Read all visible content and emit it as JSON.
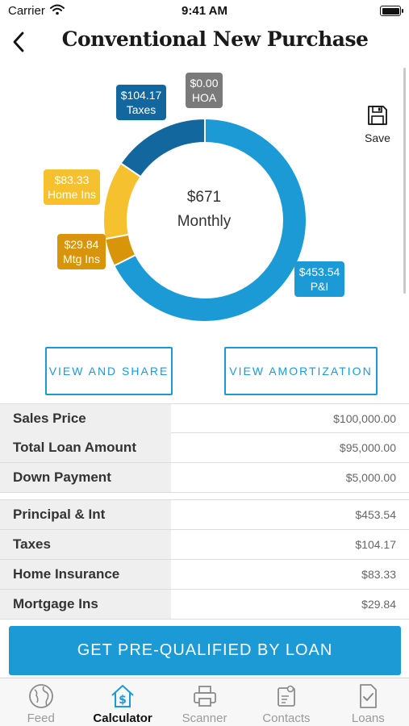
{
  "status_bar": {
    "carrier": "Carrier",
    "time": "9:41 AM"
  },
  "header": {
    "title": "Conventional New Purchase"
  },
  "save": {
    "label": "Save"
  },
  "chart_data": {
    "type": "pie",
    "center_value": "$671",
    "center_caption": "Monthly",
    "series": [
      {
        "name": "P&I",
        "value": 453.54,
        "display": "$453.54",
        "color": "#1b9ad6"
      },
      {
        "name": "Mtg Ins",
        "value": 29.84,
        "display": "$29.84",
        "color": "#d9950a"
      },
      {
        "name": "Home Ins",
        "value": 83.33,
        "display": "$83.33",
        "color": "#f6c12e"
      },
      {
        "name": "Taxes",
        "value": 104.17,
        "display": "$104.17",
        "color": "#12679e"
      },
      {
        "name": "HOA",
        "value": 0.0,
        "display": "$0.00",
        "color": "#7a7a7a"
      }
    ]
  },
  "actions": {
    "view_share": "VIEW AND SHARE",
    "view_amortization": "VIEW AMORTIZATION"
  },
  "loan_summary": [
    {
      "label": "Sales Price",
      "value": "$100,000.00"
    },
    {
      "label": "Total Loan Amount",
      "value": "$95,000.00"
    },
    {
      "label": "Down Payment",
      "value": "$5,000.00"
    }
  ],
  "payment_breakdown": [
    {
      "label": "Principal & Int",
      "value": "$453.54"
    },
    {
      "label": "Taxes",
      "value": "$104.17"
    },
    {
      "label": "Home Insurance",
      "value": "$83.33"
    },
    {
      "label": "Mortgage Ins",
      "value": "$29.84"
    }
  ],
  "cta": {
    "label": "GET PRE-QUALIFIED BY LOAN"
  },
  "tabs": [
    {
      "label": "Feed",
      "icon": "globe-icon",
      "active": false
    },
    {
      "label": "Calculator",
      "icon": "house-dollar-icon",
      "active": true
    },
    {
      "label": "Scanner",
      "icon": "printer-icon",
      "active": false
    },
    {
      "label": "Contacts",
      "icon": "contact-card-icon",
      "active": false
    },
    {
      "label": "Loans",
      "icon": "document-check-icon",
      "active": false
    }
  ]
}
